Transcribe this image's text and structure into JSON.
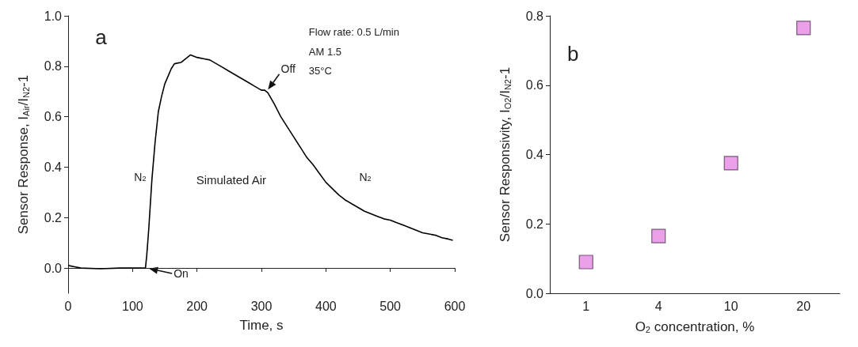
{
  "chart_data": [
    {
      "type": "line",
      "xlabel": "Time, s",
      "ylabel": "Sensor Response, I$_{Air}$/I$_{N2}$-1",
      "xlim": [
        0,
        600
      ],
      "xticks": [
        0,
        100,
        200,
        300,
        400,
        500,
        600
      ],
      "ylim": [
        -0.1,
        1.0
      ],
      "yticks": [
        {
          "value": 0,
          "label": "0.0"
        },
        {
          "value": 0.2,
          "label": "0.2"
        },
        {
          "value": 0.4,
          "label": "0.4"
        },
        {
          "value": 0.6,
          "label": "0.6"
        },
        {
          "value": 0.8,
          "label": "0.8"
        },
        {
          "value": 1.0,
          "label": "1.0"
        }
      ],
      "grid": false,
      "series": [
        {
          "color": "#000000",
          "x": [
            0,
            10,
            20,
            50,
            80,
            100,
            120,
            122,
            125,
            130,
            135,
            140,
            145,
            150,
            155,
            160,
            165,
            175,
            185,
            190,
            200,
            210,
            220,
            230,
            240,
            250,
            260,
            270,
            280,
            290,
            300,
            305,
            310,
            320,
            330,
            340,
            350,
            360,
            370,
            380,
            390,
            400,
            410,
            420,
            430,
            440,
            450,
            460,
            470,
            480,
            490,
            500,
            510,
            520,
            530,
            540,
            550,
            560,
            570,
            580,
            590,
            597
          ],
          "values": [
            0.01,
            0.005,
            0.0,
            -0.003,
            0.0,
            0.0,
            0.0,
            0.05,
            0.15,
            0.35,
            0.5,
            0.62,
            0.68,
            0.73,
            0.76,
            0.79,
            0.81,
            0.815,
            0.835,
            0.845,
            0.835,
            0.83,
            0.825,
            0.81,
            0.795,
            0.78,
            0.765,
            0.75,
            0.735,
            0.72,
            0.705,
            0.705,
            0.695,
            0.65,
            0.6,
            0.56,
            0.52,
            0.48,
            0.44,
            0.41,
            0.375,
            0.34,
            0.315,
            0.29,
            0.27,
            0.255,
            0.24,
            0.225,
            0.215,
            0.205,
            0.195,
            0.19,
            0.18,
            0.17,
            0.16,
            0.15,
            0.14,
            0.135,
            0.13,
            0.12,
            0.115,
            0.11
          ]
        }
      ],
      "annotations": [
        "a",
        "Flow rate: 0.5 L/min",
        "AM 1.5",
        "35°C",
        "N$_{2}$",
        "Simulated Air",
        "N$_{2}$",
        {
          "text": "On",
          "x": 122,
          "y": 0
        },
        {
          "text": "Off",
          "x": 308,
          "y": 0.7
        }
      ]
    },
    {
      "type": "scatter",
      "xlabel": "O$_{2}$ concentration, %",
      "ylabel": "Sensor Responsivity, I$_{O2}$/I$_{N2}$-1",
      "categories": [
        "1",
        "4",
        "10",
        "20"
      ],
      "ylim": [
        0,
        0.8
      ],
      "yticks": [
        {
          "value": 0,
          "label": "0.0"
        },
        {
          "value": 0.2,
          "label": "0.2"
        },
        {
          "value": 0.4,
          "label": "0.4"
        },
        {
          "value": 0.6,
          "label": "0.6"
        },
        {
          "value": 0.8,
          "label": "0.8"
        }
      ],
      "grid": false,
      "marker": "square",
      "series": [
        {
          "color": "#e58ae5",
          "values": [
            0.09,
            0.165,
            0.375,
            0.765
          ]
        }
      ],
      "annotations": [
        "b"
      ]
    }
  ]
}
